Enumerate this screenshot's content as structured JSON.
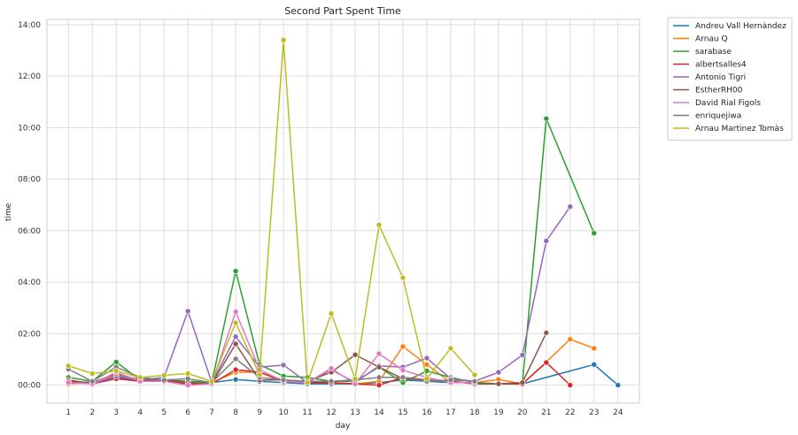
{
  "chart_data": {
    "type": "line",
    "title": "Second Part Spent Time",
    "xlabel": "day",
    "ylabel": "time",
    "x": [
      1,
      2,
      3,
      4,
      5,
      6,
      7,
      8,
      9,
      10,
      11,
      12,
      13,
      14,
      15,
      16,
      17,
      18,
      19,
      20,
      21,
      22,
      23,
      24
    ],
    "x_range": [
      0.1,
      24.9
    ],
    "y_range_hours": [
      -0.7,
      14.2
    ],
    "y_ticks": [
      {
        "hours": 0,
        "label": "00:00"
      },
      {
        "hours": 2,
        "label": "02:00"
      },
      {
        "hours": 4,
        "label": "04:00"
      },
      {
        "hours": 6,
        "label": "06:00"
      },
      {
        "hours": 8,
        "label": "08:00"
      },
      {
        "hours": 10,
        "label": "10:00"
      },
      {
        "hours": 12,
        "label": "12:00"
      },
      {
        "hours": 14,
        "label": "14:00"
      }
    ],
    "grid": true,
    "legend_position": "outside-right",
    "series": [
      {
        "name": "Andreu Vall Hernàndez",
        "color": "#1f77b4",
        "points": [
          [
            1,
            0.15
          ],
          [
            2,
            0.1
          ],
          [
            3,
            0.3
          ],
          [
            4,
            0.15
          ],
          [
            5,
            0.15
          ],
          [
            6,
            0.1
          ],
          [
            7,
            0.1
          ],
          [
            8,
            0.22
          ],
          [
            9,
            0.15
          ],
          [
            10,
            0.1
          ],
          [
            11,
            0.05
          ],
          [
            12,
            0.05
          ],
          [
            13,
            0.05
          ],
          [
            14,
            0.1
          ],
          [
            15,
            0.2
          ],
          [
            16,
            0.15
          ],
          [
            17,
            0.1
          ],
          [
            18,
            0.1
          ],
          [
            19,
            0.05
          ],
          [
            20,
            0.05
          ],
          [
            23,
            0.8
          ],
          [
            24,
            0.0
          ]
        ]
      },
      {
        "name": "Arnau Q",
        "color": "#ff7f0e",
        "points": [
          [
            1,
            0.05
          ],
          [
            2,
            0.1
          ],
          [
            3,
            0.4
          ],
          [
            4,
            0.2
          ],
          [
            5,
            0.2
          ],
          [
            6,
            0.15
          ],
          [
            7,
            0.1
          ],
          [
            8,
            0.5
          ],
          [
            9,
            0.5
          ],
          [
            10,
            0.2
          ],
          [
            11,
            0.1
          ],
          [
            12,
            0.1
          ],
          [
            13,
            0.05
          ],
          [
            14,
            0.15
          ],
          [
            15,
            1.5
          ],
          [
            16,
            0.8
          ],
          [
            17,
            0.1
          ],
          [
            18,
            0.1
          ],
          [
            19,
            0.22
          ],
          [
            20,
            0.05
          ],
          [
            21,
            0.9
          ],
          [
            22,
            1.78
          ],
          [
            23,
            1.43
          ]
        ]
      },
      {
        "name": "sarabase",
        "color": "#2ca02c",
        "points": [
          [
            1,
            0.3
          ],
          [
            2,
            0.15
          ],
          [
            3,
            0.9
          ],
          [
            4,
            0.2
          ],
          [
            5,
            0.2
          ],
          [
            6,
            0.15
          ],
          [
            7,
            0.1
          ],
          [
            8,
            4.43
          ],
          [
            9,
            0.8
          ],
          [
            10,
            0.35
          ],
          [
            11,
            0.3
          ],
          [
            12,
            0.15
          ],
          [
            13,
            0.15
          ],
          [
            14,
            0.7
          ],
          [
            15,
            0.1
          ],
          [
            16,
            0.55
          ],
          [
            17,
            0.3
          ],
          [
            18,
            0.1
          ],
          [
            19,
            0.05
          ],
          [
            20,
            0.05
          ],
          [
            21,
            10.35
          ],
          [
            23,
            5.9
          ]
        ]
      },
      {
        "name": "albertsalles4",
        "color": "#d62728",
        "points": [
          [
            1,
            0.2
          ],
          [
            2,
            0.05
          ],
          [
            3,
            0.25
          ],
          [
            4,
            0.15
          ],
          [
            5,
            0.15
          ],
          [
            6,
            0.05
          ],
          [
            7,
            0.05
          ],
          [
            8,
            0.6
          ],
          [
            9,
            0.5
          ],
          [
            10,
            0.15
          ],
          [
            11,
            0.1
          ],
          [
            12,
            0.1
          ],
          [
            13,
            0.05
          ],
          [
            14,
            0.0
          ],
          [
            15,
            0.3
          ],
          [
            16,
            0.2
          ],
          [
            17,
            0.15
          ],
          [
            18,
            0.05
          ],
          [
            19,
            0.05
          ],
          [
            20,
            0.05
          ],
          [
            21,
            0.88
          ],
          [
            22,
            0.0
          ]
        ]
      },
      {
        "name": "Antonio Tigri",
        "color": "#9467bd",
        "points": [
          [
            1,
            0.1
          ],
          [
            2,
            0.05
          ],
          [
            3,
            0.35
          ],
          [
            4,
            0.2
          ],
          [
            5,
            0.3
          ],
          [
            6,
            2.87
          ],
          [
            7,
            0.1
          ],
          [
            8,
            1.88
          ],
          [
            9,
            0.7
          ],
          [
            10,
            0.78
          ],
          [
            11,
            0.1
          ],
          [
            12,
            0.6
          ],
          [
            13,
            0.1
          ],
          [
            14,
            0.75
          ],
          [
            15,
            0.7
          ],
          [
            16,
            1.05
          ],
          [
            17,
            0.25
          ],
          [
            18,
            0.15
          ],
          [
            19,
            0.5
          ],
          [
            20,
            1.17
          ],
          [
            21,
            5.6
          ],
          [
            22,
            6.93
          ]
        ]
      },
      {
        "name": "EstherRH00",
        "color": "#8c564b",
        "points": [
          [
            1,
            0.15
          ],
          [
            2,
            0.1
          ],
          [
            3,
            0.45
          ],
          [
            4,
            0.2
          ],
          [
            5,
            0.2
          ],
          [
            6,
            0.1
          ],
          [
            7,
            0.05
          ],
          [
            8,
            1.6
          ],
          [
            9,
            0.2
          ],
          [
            10,
            0.2
          ],
          [
            11,
            0.15
          ],
          [
            12,
            0.5
          ],
          [
            13,
            1.18
          ],
          [
            14,
            0.7
          ],
          [
            15,
            0.25
          ],
          [
            16,
            0.2
          ],
          [
            17,
            0.15
          ],
          [
            18,
            0.05
          ],
          [
            19,
            0.05
          ],
          [
            20,
            0.1
          ],
          [
            21,
            2.03
          ]
        ]
      },
      {
        "name": "David Rial Figols",
        "color": "#e377c2",
        "points": [
          [
            1,
            0.1
          ],
          [
            2,
            0.05
          ],
          [
            3,
            0.5
          ],
          [
            4,
            0.15
          ],
          [
            5,
            0.15
          ],
          [
            6,
            0.0
          ],
          [
            7,
            0.05
          ],
          [
            8,
            2.85
          ],
          [
            9,
            0.6
          ],
          [
            10,
            0.15
          ],
          [
            11,
            0.1
          ],
          [
            12,
            0.65
          ],
          [
            13,
            0.05
          ],
          [
            14,
            1.22
          ],
          [
            15,
            0.58
          ],
          [
            16,
            0.3
          ],
          [
            17,
            0.1
          ],
          [
            18,
            0.1
          ]
        ]
      },
      {
        "name": "enriquejiwa",
        "color": "#7f7f7f",
        "points": [
          [
            1,
            0.62
          ],
          [
            2,
            0.15
          ],
          [
            3,
            0.7
          ],
          [
            4,
            0.3
          ],
          [
            5,
            0.2
          ],
          [
            6,
            0.25
          ],
          [
            7,
            0.1
          ],
          [
            8,
            1.02
          ],
          [
            9,
            0.3
          ],
          [
            10,
            0.2
          ],
          [
            11,
            0.15
          ],
          [
            12,
            0.15
          ],
          [
            13,
            0.2
          ],
          [
            14,
            0.3
          ],
          [
            15,
            0.3
          ],
          [
            16,
            0.15
          ],
          [
            17,
            0.2
          ],
          [
            18,
            0.15
          ]
        ]
      },
      {
        "name": "Arnau Martinez Tomàs",
        "color": "#bcbd22",
        "points": [
          [
            1,
            0.75
          ],
          [
            2,
            0.45
          ],
          [
            3,
            0.55
          ],
          [
            4,
            0.3
          ],
          [
            5,
            0.38
          ],
          [
            6,
            0.45
          ],
          [
            7,
            0.15
          ],
          [
            8,
            2.42
          ],
          [
            9,
            0.4
          ],
          [
            10,
            13.4
          ],
          [
            11,
            0.1
          ],
          [
            12,
            2.78
          ],
          [
            13,
            0.25
          ],
          [
            14,
            6.22
          ],
          [
            15,
            4.17
          ],
          [
            16,
            0.25
          ],
          [
            17,
            1.43
          ],
          [
            18,
            0.4
          ]
        ]
      }
    ]
  }
}
